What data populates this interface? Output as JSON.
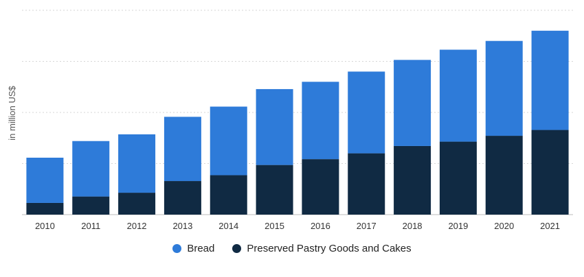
{
  "chart_data": {
    "type": "bar",
    "stacked": true,
    "ylabel": "in million US$",
    "categories": [
      "2010",
      "2011",
      "2012",
      "2013",
      "2014",
      "2015",
      "2016",
      "2017",
      "2018",
      "2019",
      "2020",
      "2021"
    ],
    "series": [
      {
        "name": "Preserved Pastry Goods and Cakes",
        "color": "#102a43",
        "values": [
          0.4,
          0.62,
          0.75,
          1.15,
          1.35,
          1.7,
          1.9,
          2.1,
          2.35,
          2.5,
          2.7,
          2.9
        ]
      },
      {
        "name": "Bread",
        "color": "#2e7bd9",
        "values": [
          1.55,
          1.9,
          2.0,
          2.2,
          2.35,
          2.6,
          2.65,
          2.8,
          2.95,
          3.15,
          3.25,
          3.4
        ]
      }
    ],
    "ylim": [
      0,
      7
    ],
    "grid": true,
    "legend_position": "bottom-center"
  }
}
